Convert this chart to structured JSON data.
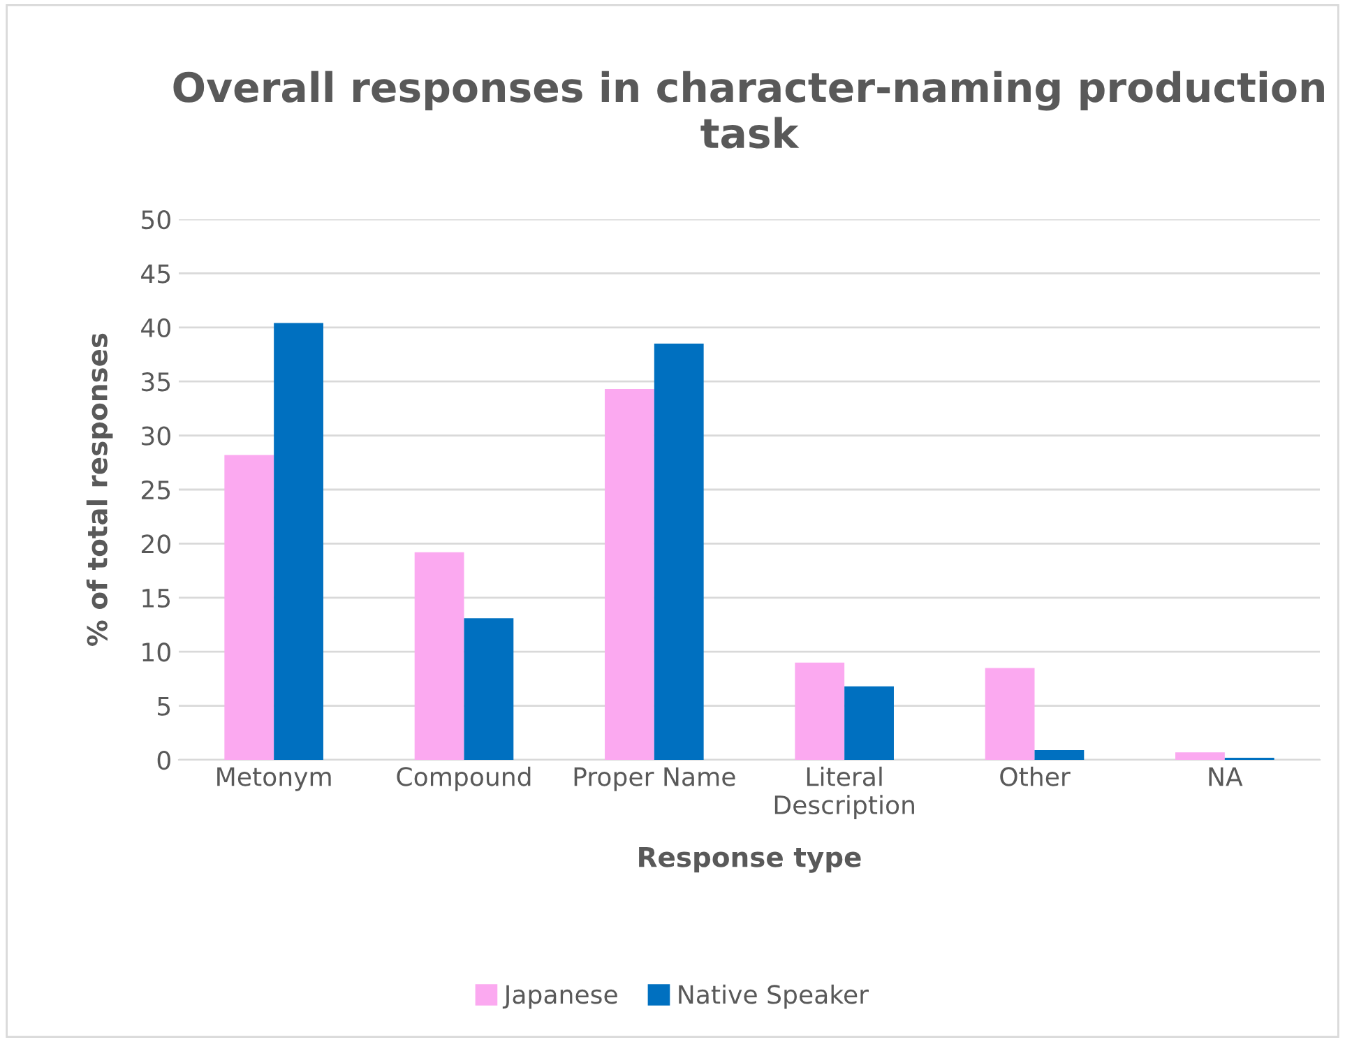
{
  "chart_data": {
    "type": "bar",
    "title": "Overall responses in character-naming production task",
    "xlabel": "Response type",
    "ylabel": "% of total responses",
    "categories": [
      "Metonym",
      "Compound",
      "Proper Name",
      "Literal\nDescription",
      "Other",
      "NA"
    ],
    "series": [
      {
        "name": "Japanese",
        "color": "#fba9f0",
        "values": [
          28.2,
          19.2,
          34.3,
          9.0,
          8.5,
          0.7
        ]
      },
      {
        "name": "Native Speaker",
        "color": "#0070c0",
        "values": [
          40.4,
          13.1,
          38.5,
          6.8,
          0.9,
          0.2
        ]
      }
    ],
    "ylim": [
      0,
      50
    ],
    "yticks": [
      0,
      5,
      10,
      15,
      20,
      25,
      30,
      35,
      40,
      45,
      50
    ],
    "grid": "y",
    "legend": "bottom"
  }
}
